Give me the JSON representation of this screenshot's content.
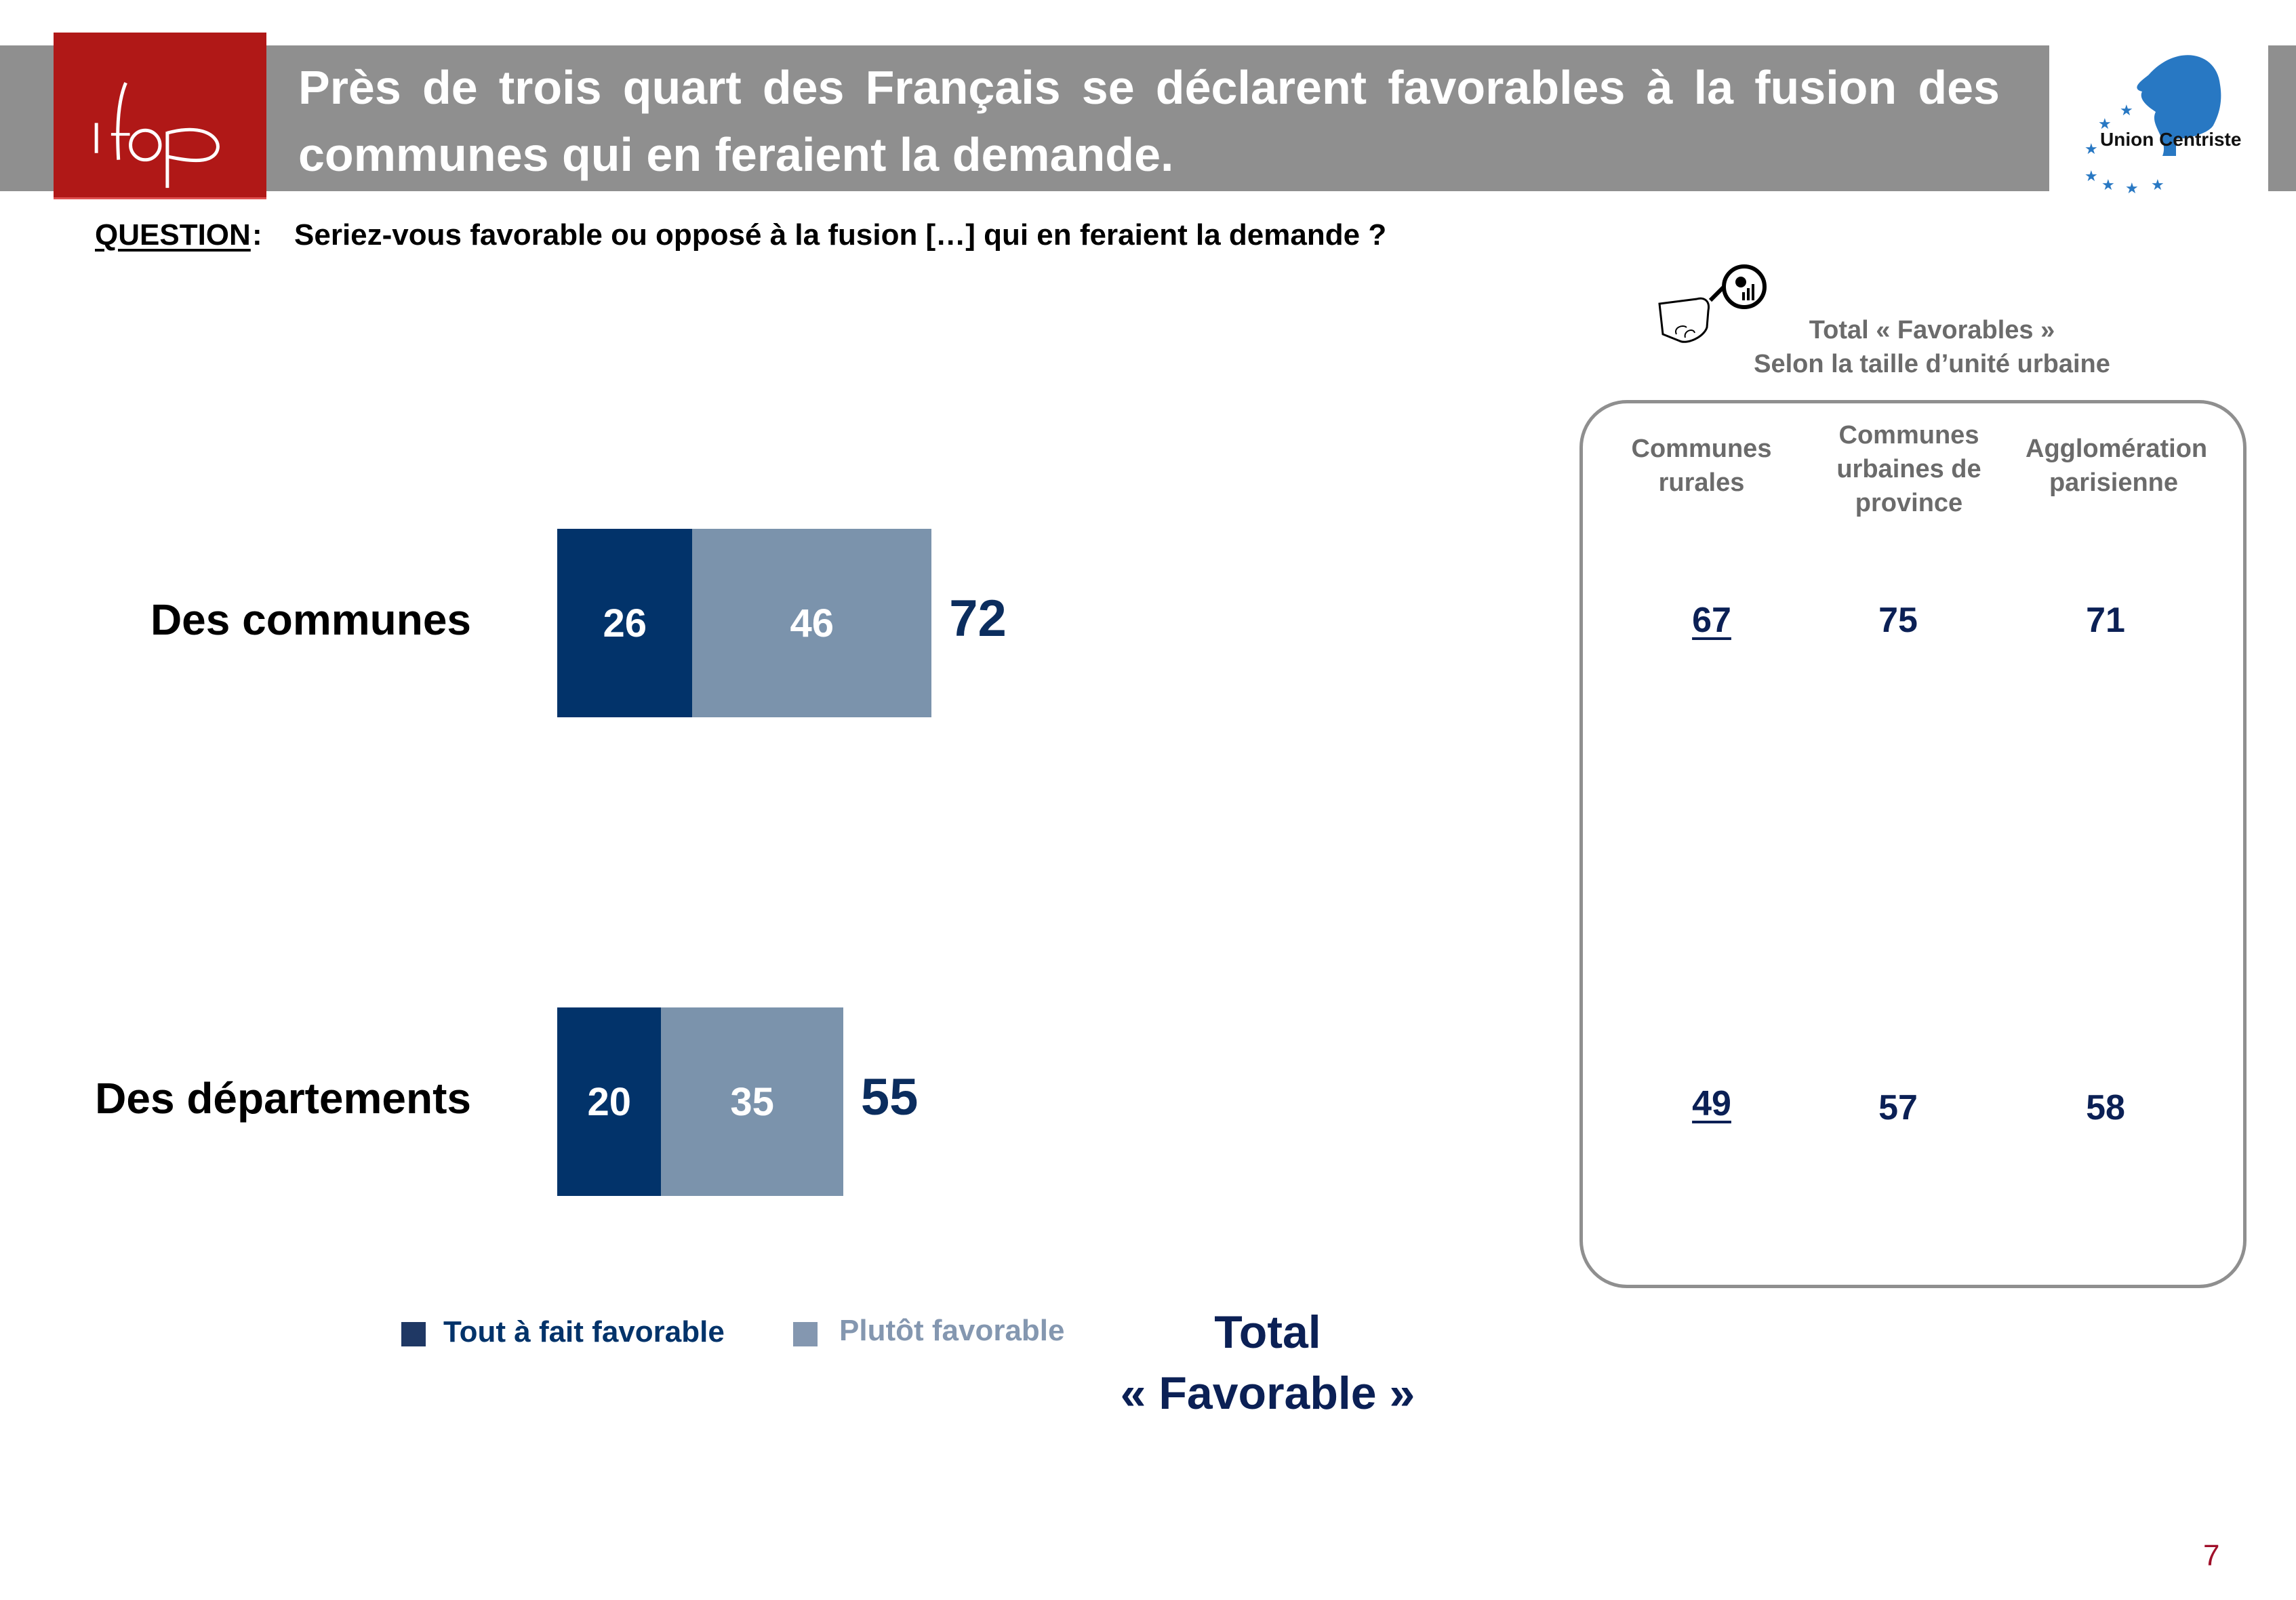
{
  "header": {
    "logo_text": "ifop",
    "title": "Près de trois quart des Français se déclarent favorables à la fusion des communes qui en feraient la demande.",
    "partner_logo_text": "Union Centriste"
  },
  "question": {
    "label": "QUESTION",
    "colon": ":",
    "text": "Seriez-vous favorable ou opposé à la fusion […] qui en feraient la demande ?"
  },
  "colors": {
    "tout_a_fait": "#02336a",
    "plutot": "#7b93ac",
    "total_text": "#0b2d5e",
    "legend_tout": "#1f3864",
    "legend_plutot": "#8497b0",
    "header_gray": "#8f8f8f",
    "ifop_red": "#b01817",
    "page_number": "#a0102a"
  },
  "chart_data": {
    "type": "bar",
    "orientation": "horizontal-stacked",
    "title": "Près de trois quart des Français se déclarent favorables à la fusion des communes qui en feraient la demande.",
    "categories": [
      "Des communes",
      "Des départements"
    ],
    "series": [
      {
        "name": "Tout à fait favorable",
        "values": [
          26,
          20
        ]
      },
      {
        "name": "Plutôt favorable",
        "values": [
          46,
          35
        ]
      }
    ],
    "totals": [
      72,
      55
    ],
    "total_label_line1": "Total",
    "total_label_line2": "« Favorable »",
    "xlim": [
      0,
      100
    ],
    "xlabel": "",
    "ylabel": "",
    "grid": false,
    "legend_position": "bottom"
  },
  "side_panel": {
    "title_line1": "Total « Favorables »",
    "title_line2": "Selon la taille d’unité urbaine",
    "icon": "magnifier-hand-icon",
    "columns": [
      {
        "label": "Communes rurales",
        "lines": [
          "Communes",
          "rurales"
        ]
      },
      {
        "label": "Communes urbaines de province",
        "lines": [
          "Communes",
          "urbaines de",
          "province"
        ]
      },
      {
        "label": "Agglomération parisienne",
        "lines": [
          "Agglomération",
          "parisienne"
        ]
      }
    ],
    "rows": [
      {
        "category": "Des communes",
        "values": [
          "67",
          "75",
          "71"
        ],
        "underlined": [
          true,
          false,
          false
        ]
      },
      {
        "category": "Des départements",
        "values": [
          "49",
          "57",
          "58"
        ],
        "underlined": [
          true,
          false,
          false
        ]
      }
    ]
  },
  "page_number": "7"
}
